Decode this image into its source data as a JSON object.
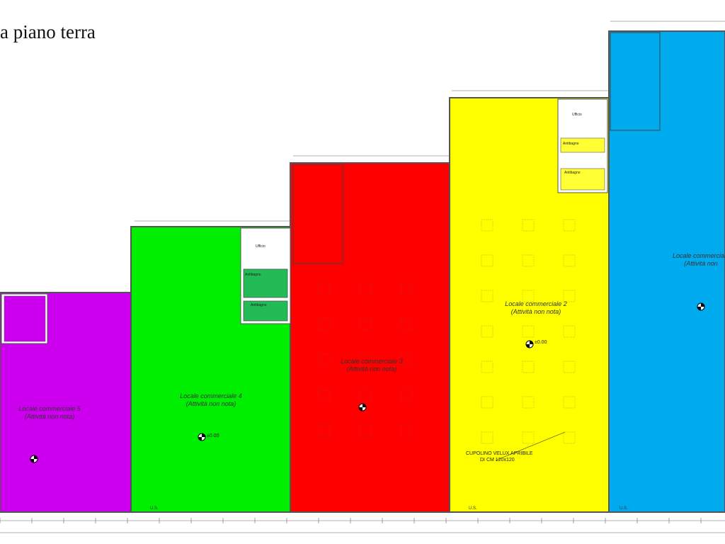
{
  "title": "a piano terra",
  "units": [
    {
      "name": "Locale commerciale 5",
      "activity": "(Attività non nota)",
      "color": "#cc00ee"
    },
    {
      "name": "Locale commerciale 4",
      "activity": "(Attività non nota)",
      "color": "#00ee00"
    },
    {
      "name": "Locale commerciale 3",
      "activity": "(Attività non nota)",
      "color": "#ff0000"
    },
    {
      "name": "Locale commerciale 2",
      "activity": "(Attività non nota)",
      "color": "#ffff00"
    },
    {
      "name": "Locale commerciale",
      "activity": "(Attività non",
      "color": "#00aaee"
    }
  ],
  "elevation_label": "±0.00",
  "skylight_note": {
    "line1": "CUPOLINO VELUX APRIBILE",
    "line2": "DI CM 120x120"
  },
  "room_labels": [
    "Ufficio",
    "Antibagno",
    "Antibagno",
    "Ufficio",
    "Antibagno",
    "Antibagno"
  ],
  "us_label": "U.S."
}
